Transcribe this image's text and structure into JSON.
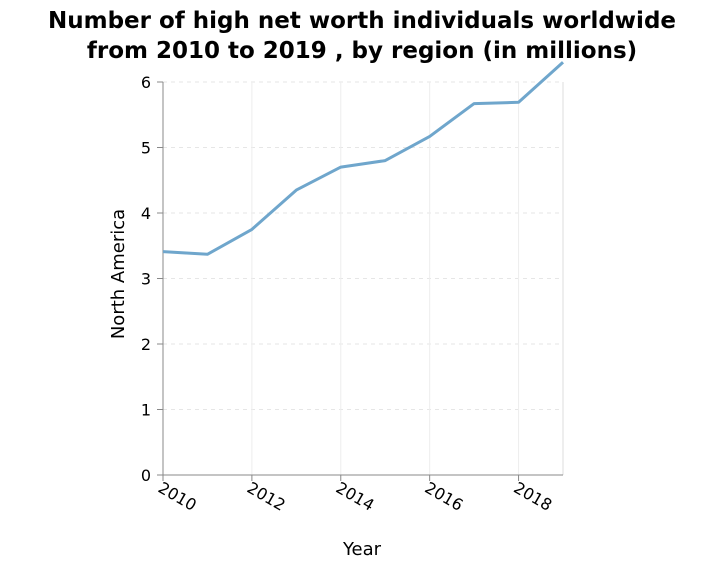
{
  "chart_data": {
    "type": "line",
    "title_lines": [
      "Number of high net worth individuals worldwide",
      "from 2010 to 2019 , by region (in millions)"
    ],
    "xlabel": "Year",
    "ylabel": "North America",
    "xlim": [
      2010,
      2019
    ],
    "ylim": [
      0,
      6
    ],
    "x_ticks": [
      "2010",
      "2012",
      "2014",
      "2016",
      "2018"
    ],
    "y_ticks": [
      "0",
      "1",
      "2",
      "3",
      "4",
      "5",
      "6"
    ],
    "grid": true,
    "series": [
      {
        "color": "#6fa6cc",
        "x": [
          2010,
          2011,
          2012,
          2013,
          2014,
          2015,
          2016,
          2017,
          2018,
          2019
        ],
        "y": [
          3.41,
          3.37,
          3.75,
          4.35,
          4.7,
          4.8,
          5.17,
          5.67,
          5.69,
          6.3
        ]
      }
    ]
  }
}
